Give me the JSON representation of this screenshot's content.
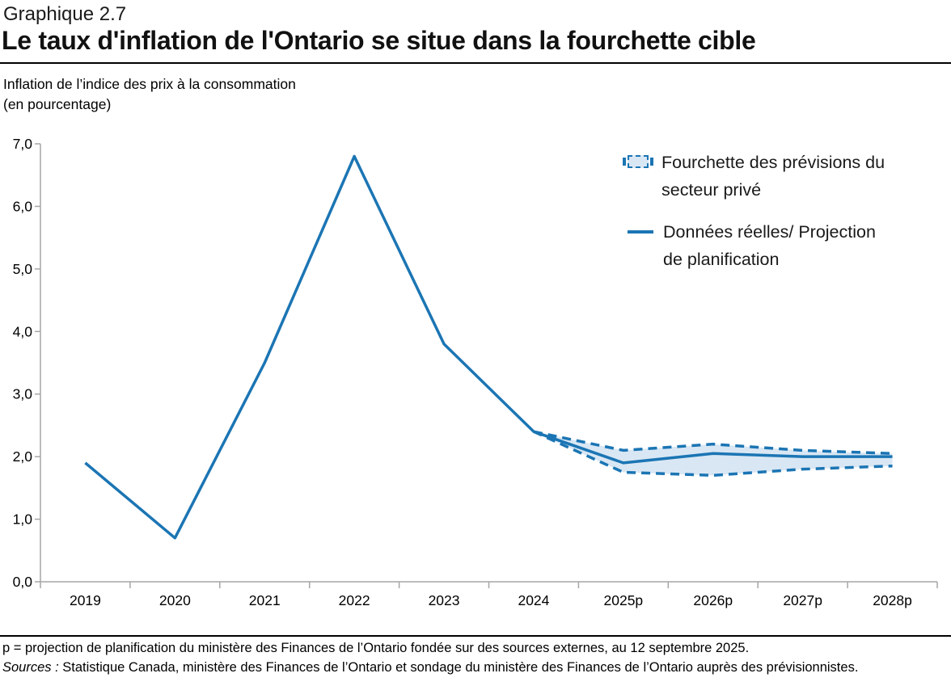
{
  "page": {
    "figure_label": "Graphique 2.7",
    "title": "Le taux d'inflation de l'Ontario se situe dans la fourchette cible"
  },
  "subtitle": {
    "line1": "Inflation de l’indice des prix à la consommation",
    "line2": "(en pourcentage)"
  },
  "legend": {
    "items": [
      {
        "marker": "dashed-band-swatch",
        "label_lines": [
          "Fourchette des prévisions du",
          "secteur privé"
        ]
      },
      {
        "marker": "solid-line-swatch",
        "label_lines": [
          "Données réelles/ Projection",
          "de planification"
        ]
      }
    ]
  },
  "footer": {
    "note": "p = projection de planification du ministère des Finances de l’Ontario fondée sur des sources externes, au 12 septembre 2025.",
    "sources_label": "Sources :",
    "sources_text": " Statistique Canada, ministère des Finances de l’Ontario et sondage du ministère des Finances de l’Ontario auprès des prévisionnistes."
  },
  "colors": {
    "line_blue": "#1b75b4",
    "band_fill": "#d9e7f4",
    "axis_gray": "#a6a6a6"
  },
  "chart_data": {
    "type": "line",
    "title": "Le taux d'inflation de l'Ontario se situe dans la fourchette cible",
    "xlabel": "",
    "ylabel": "Inflation de l’indice des prix à la consommation (en pourcentage)",
    "categories": [
      "2019",
      "2020",
      "2021",
      "2022",
      "2023",
      "2024",
      "2025p",
      "2026p",
      "2027p",
      "2028p"
    ],
    "series": [
      {
        "name": "Données réelles/ Projection de planification",
        "style": "solid",
        "values": [
          1.9,
          0.7,
          3.5,
          6.8,
          3.8,
          2.4,
          1.9,
          2.05,
          2.0,
          2.0
        ]
      }
    ],
    "band": {
      "name": "Fourchette des prévisions du secteur privé",
      "categories": [
        "2024",
        "2025p",
        "2026p",
        "2027p",
        "2028p"
      ],
      "upper": [
        2.4,
        2.1,
        2.2,
        2.1,
        2.05
      ],
      "lower": [
        2.4,
        1.75,
        1.7,
        1.8,
        1.85
      ]
    },
    "ylim": [
      0,
      7
    ],
    "y_ticks": [
      {
        "value": 0,
        "label": "0,0"
      },
      {
        "value": 1,
        "label": "1,0"
      },
      {
        "value": 2,
        "label": "2,0"
      },
      {
        "value": 3,
        "label": "3,0"
      },
      {
        "value": 4,
        "label": "4,0"
      },
      {
        "value": 5,
        "label": "5,0"
      },
      {
        "value": 6,
        "label": "6,0"
      },
      {
        "value": 7,
        "label": "7,0"
      }
    ],
    "grid": false,
    "legend_position": "top-right"
  }
}
